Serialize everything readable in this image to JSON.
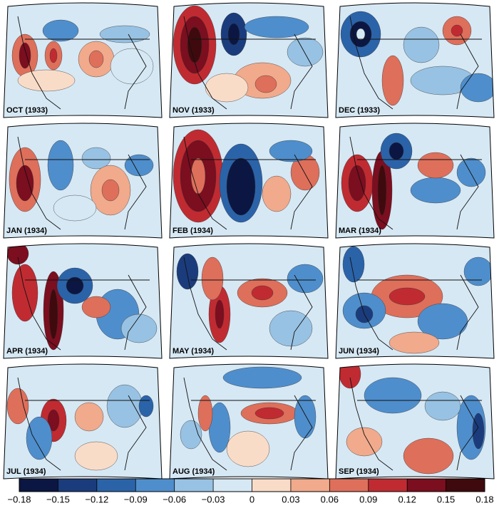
{
  "panels": [
    "OCT (1933)",
    "NOV (1933)",
    "DEC (1933)",
    "JAN (1934)",
    "FEB (1934)",
    "MAR (1934)",
    "APR (1934)",
    "MAY (1934)",
    "JUN (1934)",
    "JUL (1934)",
    "AUG (1934)",
    "SEP (1934)"
  ],
  "colorbar": {
    "ticks": [
      {
        "value": -0.18,
        "label": "−0.18"
      },
      {
        "value": -0.15,
        "label": "−0.15"
      },
      {
        "value": -0.12,
        "label": "−0.12"
      },
      {
        "value": -0.09,
        "label": "−0.09"
      },
      {
        "value": -0.06,
        "label": "−0.06"
      },
      {
        "value": -0.03,
        "label": "−0.03"
      },
      0,
      0.03,
      0.06,
      0.09,
      0.12,
      0.15,
      0.18
    ],
    "colors": [
      "#0b1742",
      "#1b3c7c",
      "#2b63a9",
      "#4f8ecc",
      "#98c2e3",
      "#d6e8f4",
      "#f9dcc8",
      "#f1aa8c",
      "#de6f5b",
      "#c02b31",
      "#7b0e1f",
      "#3f0a0d"
    ]
  }
}
